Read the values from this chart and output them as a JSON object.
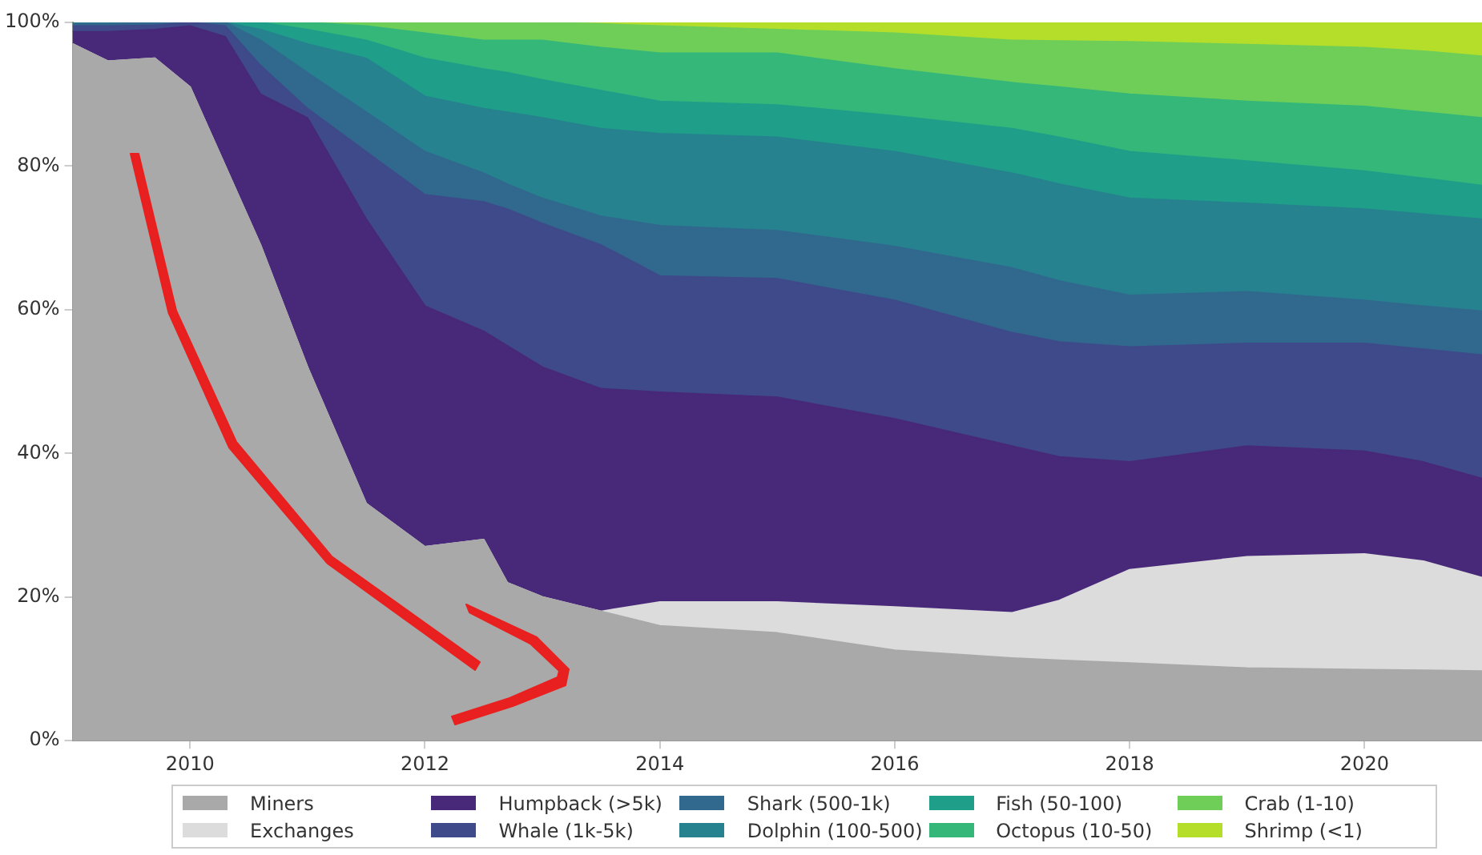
{
  "chart_data": {
    "type": "area",
    "stacked": true,
    "x": [
      2009,
      2009.3,
      2009.7,
      2010,
      2010.3,
      2010.6,
      2011,
      2011.5,
      2012,
      2012.5,
      2012.7,
      2013,
      2013.5,
      2014,
      2015,
      2016,
      2017,
      2017.4,
      2018,
      2019,
      2020,
      2020.5,
      2021
    ],
    "xlim": [
      2009,
      2021
    ],
    "xticks": [
      2010,
      2012,
      2014,
      2016,
      2018,
      2020
    ],
    "ylim": [
      0,
      100
    ],
    "yticks": [
      {
        "value": 0,
        "label": "0%"
      },
      {
        "value": 20,
        "label": "20%"
      },
      {
        "value": 40,
        "label": "40%"
      },
      {
        "value": 60,
        "label": "60%"
      },
      {
        "value": 80,
        "label": "80%"
      },
      {
        "value": 100,
        "label": "100%"
      }
    ],
    "grid": false,
    "legend": "bottom",
    "marker": "none",
    "series": [
      {
        "name": "Miners",
        "color": "#a9a9a9",
        "values": [
          97,
          94.6,
          95,
          91,
          80,
          69,
          52,
          33,
          27,
          28,
          22,
          20,
          18,
          16,
          15,
          12.6,
          11.5,
          11.2,
          10.8,
          10.1,
          9.9,
          9.8,
          9.7
        ]
      },
      {
        "name": "Exchanges",
        "color": "#dcdcdc",
        "values": [
          0,
          0,
          0,
          0,
          0,
          0,
          0,
          0,
          0,
          0,
          0,
          0,
          0,
          3.3,
          4.3,
          6,
          6.3,
          8.3,
          13,
          15.5,
          16.1,
          15.2,
          13
        ]
      },
      {
        "name": "Humpback (>5k)",
        "color": "#482878",
        "values": [
          1.7,
          4.1,
          4,
          8.5,
          18,
          21,
          34.7,
          39.6,
          33.5,
          29,
          33,
          32,
          31,
          29.2,
          28.5,
          26.2,
          23.2,
          20,
          15,
          15.4,
          14.3,
          13.8,
          13.8
        ]
      },
      {
        "name": "Whale (1k-5k)",
        "color": "#3e4a89",
        "values": [
          0.8,
          0.8,
          0.6,
          0.5,
          1.5,
          4,
          1.3,
          9.4,
          15.5,
          18,
          19,
          20,
          20,
          16.2,
          16.5,
          16.5,
          15.8,
          16,
          16,
          14.3,
          15,
          15.7,
          17.2
        ]
      },
      {
        "name": "Shark (500-1k)",
        "color": "#31688e",
        "values": [
          0.3,
          0.3,
          0.4,
          0,
          0.5,
          3.5,
          5,
          5.5,
          6,
          4,
          3.5,
          3.5,
          4,
          7,
          6.7,
          7.5,
          9,
          8.5,
          7.2,
          7.2,
          6,
          6,
          6.1
        ]
      },
      {
        "name": "Dolphin (100-500)",
        "color": "#26828e",
        "values": [
          0.2,
          0.2,
          0,
          0,
          0,
          1.5,
          4,
          7.5,
          7.7,
          9,
          10,
          11.2,
          12.2,
          12.8,
          13,
          13.2,
          13.2,
          13.5,
          13.5,
          12.3,
          12.7,
          12.8,
          12.8
        ]
      },
      {
        "name": "Fish (50-100)",
        "color": "#1f9e89",
        "values": [
          0,
          0,
          0,
          0,
          0,
          1,
          2,
          2.5,
          5.3,
          5.5,
          5.5,
          5.3,
          5.3,
          4.5,
          4.5,
          5,
          6.2,
          6.5,
          6.5,
          5.9,
          5.3,
          5,
          4.7
        ]
      },
      {
        "name": "Octopus (10-50)",
        "color": "#35b779",
        "values": [
          0,
          0,
          0,
          0,
          0,
          0,
          1,
          2,
          3.5,
          4,
          4.5,
          5.5,
          6,
          6.7,
          7.2,
          6.5,
          6.4,
          7,
          8,
          8.3,
          9,
          9.2,
          9.4
        ]
      },
      {
        "name": "Crab (1-10)",
        "color": "#6ece58",
        "values": [
          0,
          0,
          0,
          0,
          0,
          0,
          0,
          0.5,
          1.5,
          2.5,
          2.5,
          2.5,
          3.3,
          3.8,
          3.3,
          5,
          5.9,
          6.4,
          7.3,
          7.9,
          8.2,
          8.5,
          8.6
        ]
      },
      {
        "name": "Shrimp (<1)",
        "color": "#b5de2b",
        "values": [
          0,
          0,
          0,
          0,
          0,
          0,
          0,
          0,
          0,
          0,
          0,
          0,
          0.2,
          0.5,
          1,
          1.5,
          2.5,
          2.6,
          2.7,
          3.1,
          3.5,
          4,
          4.7
        ]
      }
    ]
  }
}
